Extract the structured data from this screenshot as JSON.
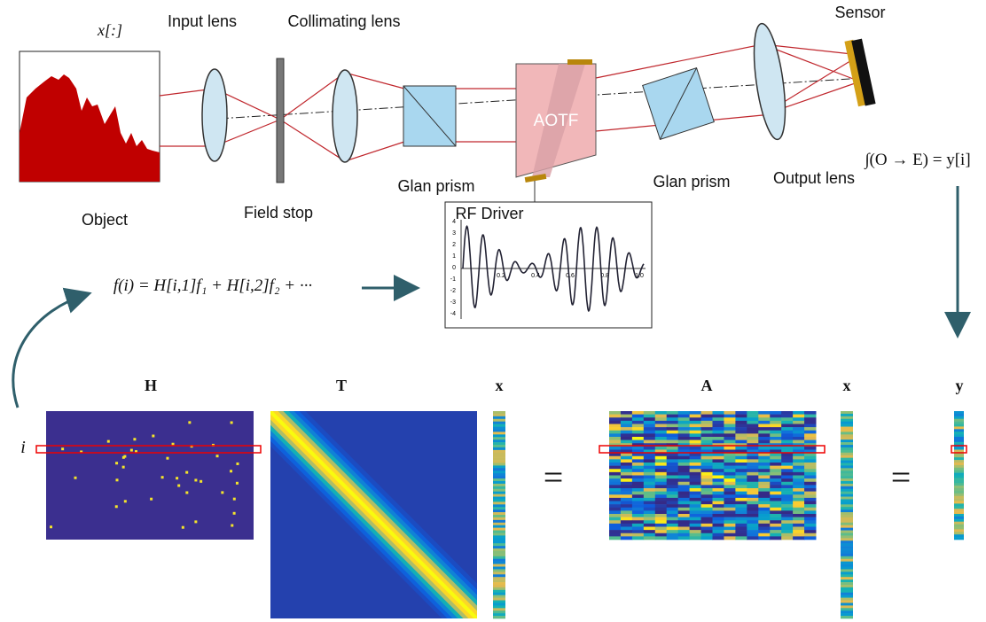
{
  "labels": {
    "object_signal": "x[:]",
    "input_lens": "Input lens",
    "collimating_lens": "Collimating lens",
    "sensor": "Sensor",
    "object": "Object",
    "field_stop": "Field stop",
    "glan_prism_1": "Glan prism",
    "aotf": "AOTF",
    "glan_prism_2": "Glan prism",
    "output_lens": "Output lens",
    "rf_driver": "RF Driver",
    "sensor_equation": "∫(O → E) = y[i]",
    "formula": "f(i) = H[i,1]f₁ + H[i,2]f₂ + ···"
  },
  "rf_plot": {
    "yticks": [
      "4",
      "3",
      "2",
      "1",
      "0",
      "-1",
      "-2",
      "-3",
      "-4"
    ],
    "xticks": [
      "0.2",
      "0.4",
      "0.6",
      "0.8",
      "1.0"
    ]
  },
  "matrices": {
    "h": "H",
    "t": "T",
    "x1": "x",
    "eq1": "=",
    "a": "A",
    "x2": "x",
    "eq2": "=",
    "y": "y",
    "row": "i"
  }
}
